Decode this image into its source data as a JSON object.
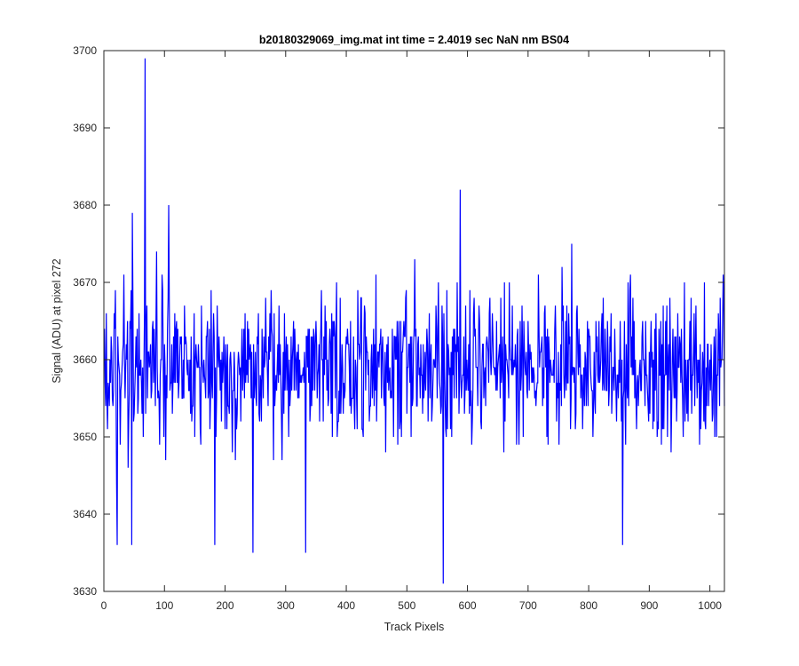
{
  "chart_data": {
    "type": "line",
    "title": "b20180329069_img.mat int time = 2.4019 sec  NaN nm BS04",
    "xlabel": "Track Pixels",
    "ylabel": "Signal (ADU) at pixel 272",
    "xlim": [
      0,
      1024
    ],
    "ylim": [
      3630,
      3700
    ],
    "xticks": [
      0,
      100,
      200,
      300,
      400,
      500,
      600,
      700,
      800,
      900,
      1000
    ],
    "yticks": [
      3630,
      3640,
      3650,
      3660,
      3670,
      3680,
      3690,
      3700
    ],
    "grid": false,
    "series": [
      {
        "color": "#0000ff",
        "noise_model": {
          "count": 1024,
          "mean": 3659,
          "spread": 6.8,
          "min": 3631,
          "max": 3699,
          "seed": 272
        },
        "notable_points": [
          {
            "x": 68,
            "y": 3699
          },
          {
            "x": 560,
            "y": 3631
          },
          {
            "x": 588,
            "y": 3682
          },
          {
            "x": 107,
            "y": 3680
          },
          {
            "x": 47,
            "y": 3679
          },
          {
            "x": 22,
            "y": 3636
          },
          {
            "x": 46,
            "y": 3636
          },
          {
            "x": 183,
            "y": 3636
          },
          {
            "x": 246,
            "y": 3635
          },
          {
            "x": 333,
            "y": 3635
          },
          {
            "x": 856,
            "y": 3636
          },
          {
            "x": 1022,
            "y": 3671
          }
        ]
      }
    ]
  }
}
